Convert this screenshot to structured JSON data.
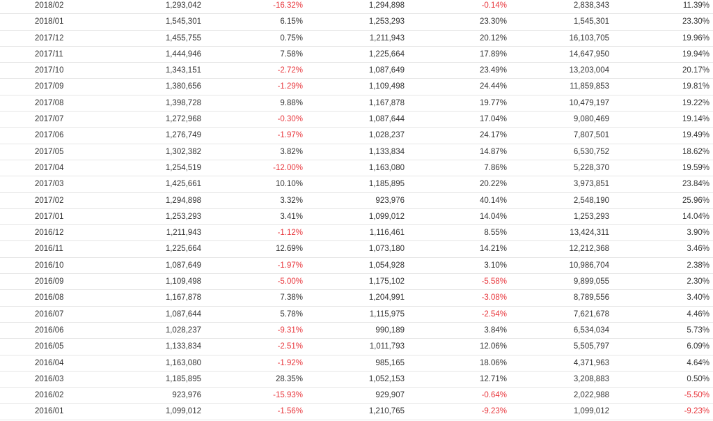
{
  "colors": {
    "text": "#333333",
    "negative": "#e8363c",
    "row_border": "#e6e6e6"
  },
  "rows": [
    [
      "2018/02",
      "1,293,042",
      "-16.32%",
      "1,294,898",
      "-0.14%",
      "2,838,343",
      "11.39%"
    ],
    [
      "2018/01",
      "1,545,301",
      "6.15%",
      "1,253,293",
      "23.30%",
      "1,545,301",
      "23.30%"
    ],
    [
      "2017/12",
      "1,455,755",
      "0.75%",
      "1,211,943",
      "20.12%",
      "16,103,705",
      "19.96%"
    ],
    [
      "2017/11",
      "1,444,946",
      "7.58%",
      "1,225,664",
      "17.89%",
      "14,647,950",
      "19.94%"
    ],
    [
      "2017/10",
      "1,343,151",
      "-2.72%",
      "1,087,649",
      "23.49%",
      "13,203,004",
      "20.17%"
    ],
    [
      "2017/09",
      "1,380,656",
      "-1.29%",
      "1,109,498",
      "24.44%",
      "11,859,853",
      "19.81%"
    ],
    [
      "2017/08",
      "1,398,728",
      "9.88%",
      "1,167,878",
      "19.77%",
      "10,479,197",
      "19.22%"
    ],
    [
      "2017/07",
      "1,272,968",
      "-0.30%",
      "1,087,644",
      "17.04%",
      "9,080,469",
      "19.14%"
    ],
    [
      "2017/06",
      "1,276,749",
      "-1.97%",
      "1,028,237",
      "24.17%",
      "7,807,501",
      "19.49%"
    ],
    [
      "2017/05",
      "1,302,382",
      "3.82%",
      "1,133,834",
      "14.87%",
      "6,530,752",
      "18.62%"
    ],
    [
      "2017/04",
      "1,254,519",
      "-12.00%",
      "1,163,080",
      "7.86%",
      "5,228,370",
      "19.59%"
    ],
    [
      "2017/03",
      "1,425,661",
      "10.10%",
      "1,185,895",
      "20.22%",
      "3,973,851",
      "23.84%"
    ],
    [
      "2017/02",
      "1,294,898",
      "3.32%",
      "923,976",
      "40.14%",
      "2,548,190",
      "25.96%"
    ],
    [
      "2017/01",
      "1,253,293",
      "3.41%",
      "1,099,012",
      "14.04%",
      "1,253,293",
      "14.04%"
    ],
    [
      "2016/12",
      "1,211,943",
      "-1.12%",
      "1,116,461",
      "8.55%",
      "13,424,311",
      "3.90%"
    ],
    [
      "2016/11",
      "1,225,664",
      "12.69%",
      "1,073,180",
      "14.21%",
      "12,212,368",
      "3.46%"
    ],
    [
      "2016/10",
      "1,087,649",
      "-1.97%",
      "1,054,928",
      "3.10%",
      "10,986,704",
      "2.38%"
    ],
    [
      "2016/09",
      "1,109,498",
      "-5.00%",
      "1,175,102",
      "-5.58%",
      "9,899,055",
      "2.30%"
    ],
    [
      "2016/08",
      "1,167,878",
      "7.38%",
      "1,204,991",
      "-3.08%",
      "8,789,556",
      "3.40%"
    ],
    [
      "2016/07",
      "1,087,644",
      "5.78%",
      "1,115,975",
      "-2.54%",
      "7,621,678",
      "4.46%"
    ],
    [
      "2016/06",
      "1,028,237",
      "-9.31%",
      "990,189",
      "3.84%",
      "6,534,034",
      "5.73%"
    ],
    [
      "2016/05",
      "1,133,834",
      "-2.51%",
      "1,011,793",
      "12.06%",
      "5,505,797",
      "6.09%"
    ],
    [
      "2016/04",
      "1,163,080",
      "-1.92%",
      "985,165",
      "18.06%",
      "4,371,963",
      "4.64%"
    ],
    [
      "2016/03",
      "1,185,895",
      "28.35%",
      "1,052,153",
      "12.71%",
      "3,208,883",
      "0.50%"
    ],
    [
      "2016/02",
      "923,976",
      "-15.93%",
      "929,907",
      "-0.64%",
      "2,022,988",
      "-5.50%"
    ],
    [
      "2016/01",
      "1,099,012",
      "-1.56%",
      "1,210,765",
      "-9.23%",
      "1,099,012",
      "-9.23%"
    ]
  ]
}
